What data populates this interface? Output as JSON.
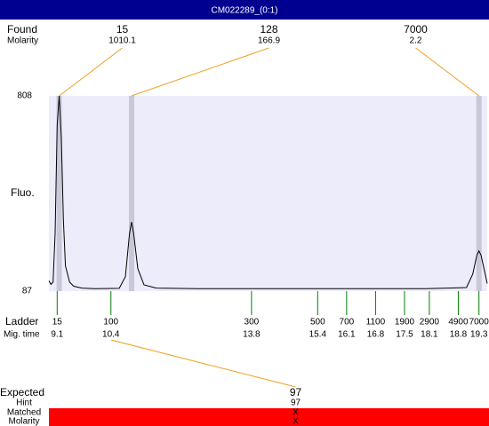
{
  "title": "CM022289_(0:1)",
  "chart_data": {
    "type": "electropherogram",
    "y_label": "Fluo.",
    "ylim": [
      87,
      808
    ],
    "yticks": [
      808,
      87
    ],
    "xlim": [
      8.9,
      19.5
    ],
    "plot_color": "#ececfa",
    "band_color": "#c8c8d8",
    "link_color": "#f0a020",
    "found": {
      "label": "Found",
      "molarity_label": "Molarity",
      "peaks": [
        {
          "size": 15,
          "molarity": 1010.1,
          "time": 9.15
        },
        {
          "size": 128,
          "molarity": 166.9,
          "time": 10.9
        },
        {
          "size": 7000,
          "molarity": 2.2,
          "time": 19.3
        }
      ]
    },
    "trace": {
      "color": "#000000",
      "x": [
        8.9,
        8.95,
        9.0,
        9.05,
        9.1,
        9.15,
        9.2,
        9.25,
        9.3,
        9.4,
        9.5,
        9.7,
        10.0,
        10.6,
        10.75,
        10.85,
        10.9,
        10.95,
        11.05,
        11.2,
        11.5,
        12.5,
        15,
        18,
        19.0,
        19.15,
        19.25,
        19.3,
        19.35,
        19.45,
        19.5
      ],
      "values": [
        125,
        112,
        120,
        300,
        700,
        808,
        650,
        350,
        180,
        120,
        105,
        98,
        96,
        97,
        140,
        300,
        342,
        300,
        170,
        110,
        98,
        96,
        96,
        96,
        100,
        150,
        220,
        235,
        220,
        150,
        115
      ]
    },
    "ladder": {
      "label": "Ladder",
      "time_label": "Mig. time",
      "color": "#008000",
      "sizes": [
        15,
        100,
        300,
        500,
        700,
        1100,
        1900,
        2900,
        4900,
        7000
      ],
      "times": [
        9.1,
        10.4,
        13.8,
        15.4,
        16.1,
        16.8,
        17.5,
        18.1,
        18.8,
        19.3
      ]
    },
    "expected": {
      "label": "Expected",
      "hint_label": "Hint",
      "matched_label": "Matched",
      "molarity_label": "Molarity",
      "size": 97,
      "hint": 97,
      "matched": "X",
      "molarity": "X",
      "color": "#ff0000"
    }
  }
}
